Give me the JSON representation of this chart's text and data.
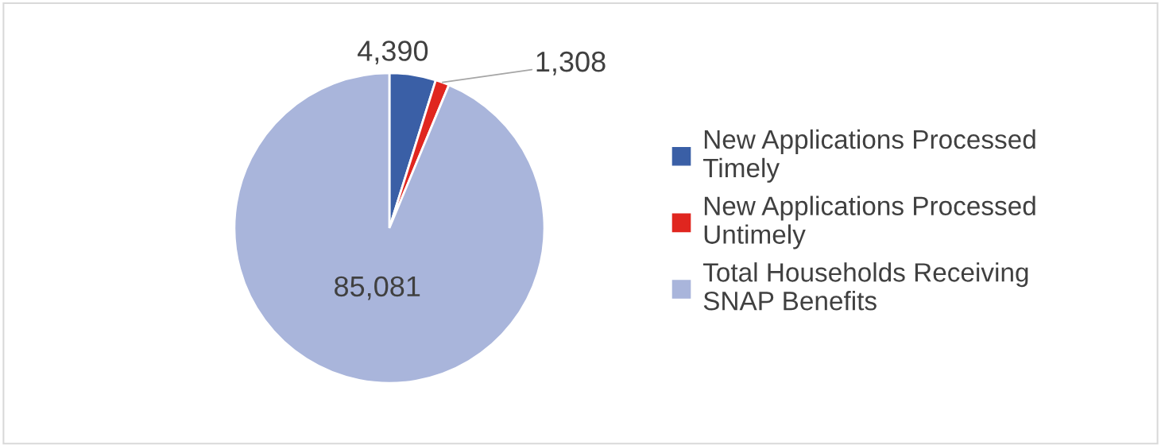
{
  "chart_data": {
    "type": "pie",
    "categories": [
      "New Applications Processed Timely",
      "New Applications Processed Untimely",
      "Total Households Receiving SNAP Benefits"
    ],
    "values": [
      4390,
      1308,
      85081
    ],
    "colors": [
      "#3a5fa6",
      "#e0261f",
      "#a9b5db"
    ],
    "value_labels": [
      "4,390",
      "1,308",
      "85,081"
    ],
    "legend": "right"
  }
}
